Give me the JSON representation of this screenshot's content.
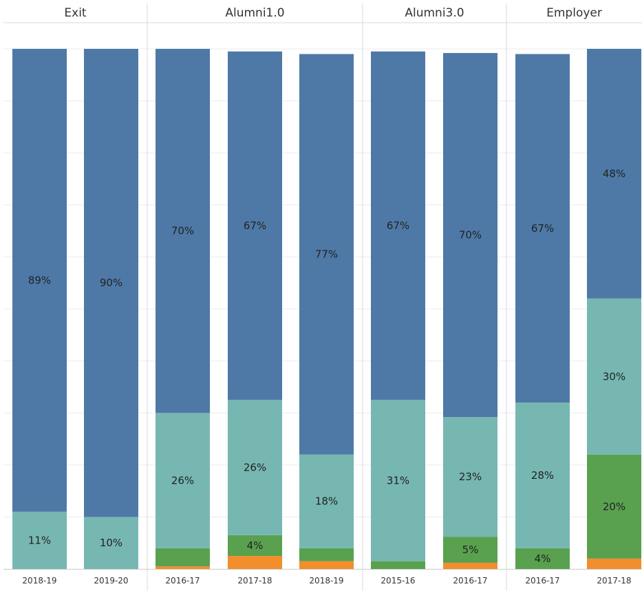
{
  "chart_data": {
    "type": "bar",
    "stacked": true,
    "normalized": true,
    "ylim": [
      0,
      100
    ],
    "y_unit": "%",
    "grid": true,
    "colors": {
      "orange": "#f28e2b",
      "green": "#59a14f",
      "teal": "#76b7b2",
      "blue": "#4e79a7"
    },
    "panels": [
      {
        "title": "Exit",
        "bars": [
          {
            "category": "2018-19",
            "segments": [
              {
                "color": "teal",
                "value": 11,
                "label": "11%"
              },
              {
                "color": "blue",
                "value": 89,
                "label": "89%"
              }
            ]
          },
          {
            "category": "2019-20",
            "segments": [
              {
                "color": "teal",
                "value": 10,
                "label": "10%"
              },
              {
                "color": "blue",
                "value": 90,
                "label": "90%"
              }
            ]
          }
        ]
      },
      {
        "title": "Alumni1.0",
        "bars": [
          {
            "category": "2016-17",
            "segments": [
              {
                "color": "orange",
                "value": 0.5,
                "label": ""
              },
              {
                "color": "green",
                "value": 3.5,
                "label": ""
              },
              {
                "color": "teal",
                "value": 26,
                "label": "26%"
              },
              {
                "color": "blue",
                "value": 70,
                "label": "70%"
              }
            ]
          },
          {
            "category": "2017-18",
            "segments": [
              {
                "color": "orange",
                "value": 2.5,
                "label": ""
              },
              {
                "color": "green",
                "value": 4,
                "label": "4%"
              },
              {
                "color": "teal",
                "value": 26,
                "label": "26%"
              },
              {
                "color": "blue",
                "value": 67,
                "label": "67%"
              }
            ]
          },
          {
            "category": "2018-19",
            "segments": [
              {
                "color": "orange",
                "value": 1.5,
                "label": ""
              },
              {
                "color": "green",
                "value": 2.5,
                "label": ""
              },
              {
                "color": "teal",
                "value": 18,
                "label": "18%"
              },
              {
                "color": "blue",
                "value": 77,
                "label": "77%"
              }
            ]
          }
        ]
      },
      {
        "title": "Alumni3.0",
        "bars": [
          {
            "category": "2015-16",
            "segments": [
              {
                "color": "green",
                "value": 1.5,
                "label": ""
              },
              {
                "color": "teal",
                "value": 31,
                "label": "31%"
              },
              {
                "color": "blue",
                "value": 67,
                "label": "67%"
              }
            ]
          },
          {
            "category": "2016-17",
            "segments": [
              {
                "color": "orange",
                "value": 1.2,
                "label": ""
              },
              {
                "color": "green",
                "value": 5,
                "label": "5%"
              },
              {
                "color": "teal",
                "value": 23,
                "label": "23%"
              },
              {
                "color": "blue",
                "value": 70,
                "label": "70%"
              }
            ]
          }
        ]
      },
      {
        "title": "Employer",
        "bars": [
          {
            "category": "2016-17",
            "segments": [
              {
                "color": "green",
                "value": 4,
                "label": "4%"
              },
              {
                "color": "teal",
                "value": 28,
                "label": "28%"
              },
              {
                "color": "blue",
                "value": 67,
                "label": "67%"
              }
            ]
          },
          {
            "category": "2017-18",
            "segments": [
              {
                "color": "orange",
                "value": 2,
                "label": ""
              },
              {
                "color": "green",
                "value": 20,
                "label": "20%"
              },
              {
                "color": "teal",
                "value": 30,
                "label": "30%"
              },
              {
                "color": "blue",
                "value": 48,
                "label": "48%"
              }
            ]
          }
        ]
      }
    ]
  }
}
